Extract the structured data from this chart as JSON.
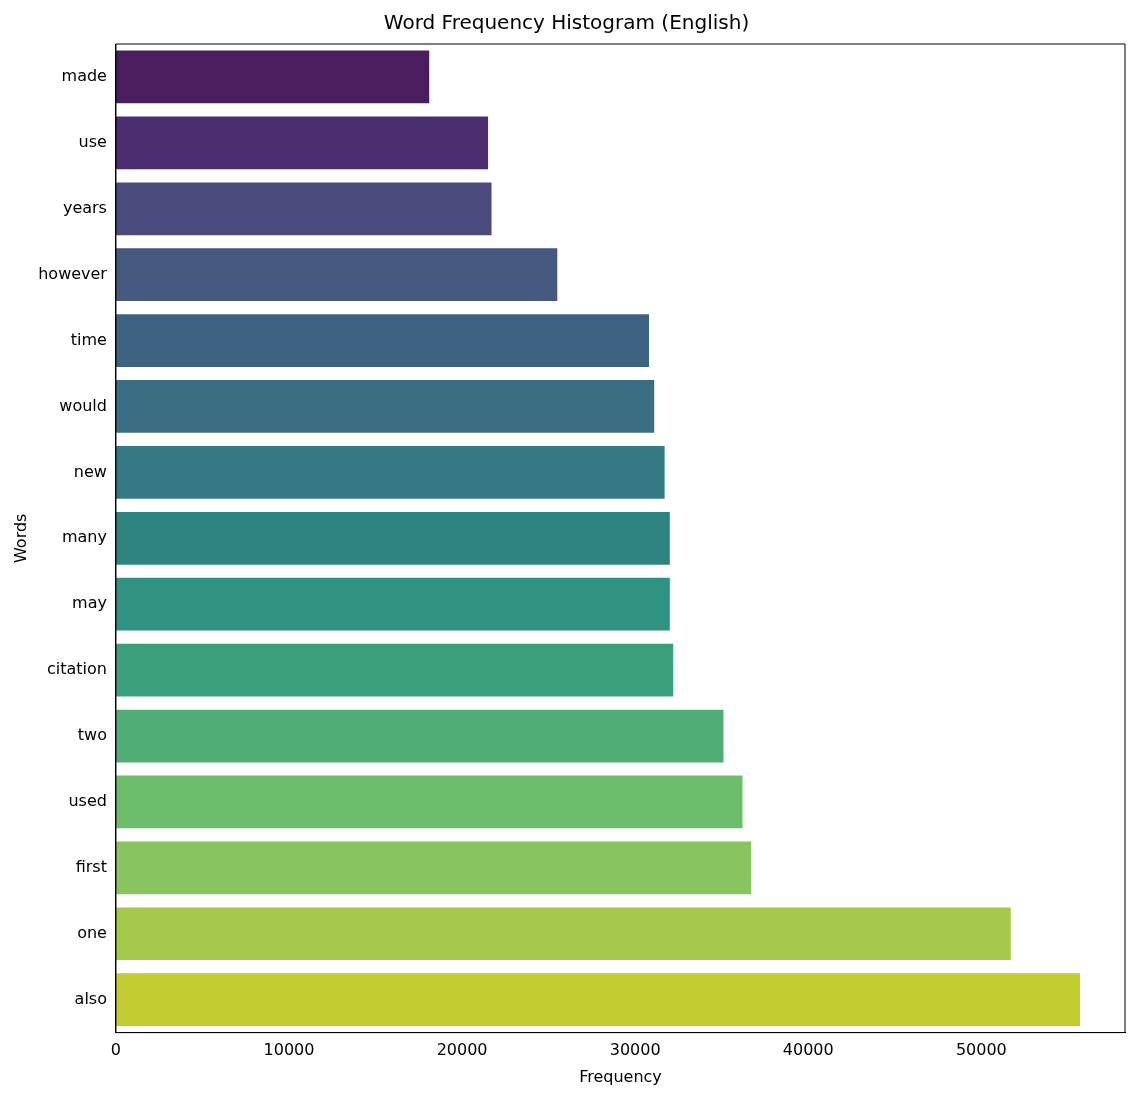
{
  "chart_data": {
    "type": "bar",
    "orientation": "horizontal",
    "title": "Word Frequency Histogram (English)",
    "xlabel": "Frequency",
    "ylabel": "Words",
    "categories": [
      "made",
      "use",
      "years",
      "however",
      "time",
      "would",
      "new",
      "many",
      "may",
      "citation",
      "two",
      "used",
      "first",
      "one",
      "also"
    ],
    "values": [
      18100,
      21500,
      21700,
      25500,
      30800,
      31100,
      31700,
      32000,
      32000,
      32200,
      35100,
      36200,
      36700,
      51700,
      55700
    ],
    "colors": [
      "#4a1e5e",
      "#4a2e6f",
      "#4a4a7d",
      "#45597f",
      "#3e6282",
      "#3a6e82",
      "#347983",
      "#2f8480",
      "#309280",
      "#3a9f7b",
      "#4fad75",
      "#6bbd6c",
      "#88c45f",
      "#a5c84a",
      "#c2cc33"
    ],
    "xlim": [
      0,
      58300
    ],
    "xticks": [
      0,
      10000,
      20000,
      30000,
      40000,
      50000
    ],
    "grid": false,
    "legend": false
  }
}
